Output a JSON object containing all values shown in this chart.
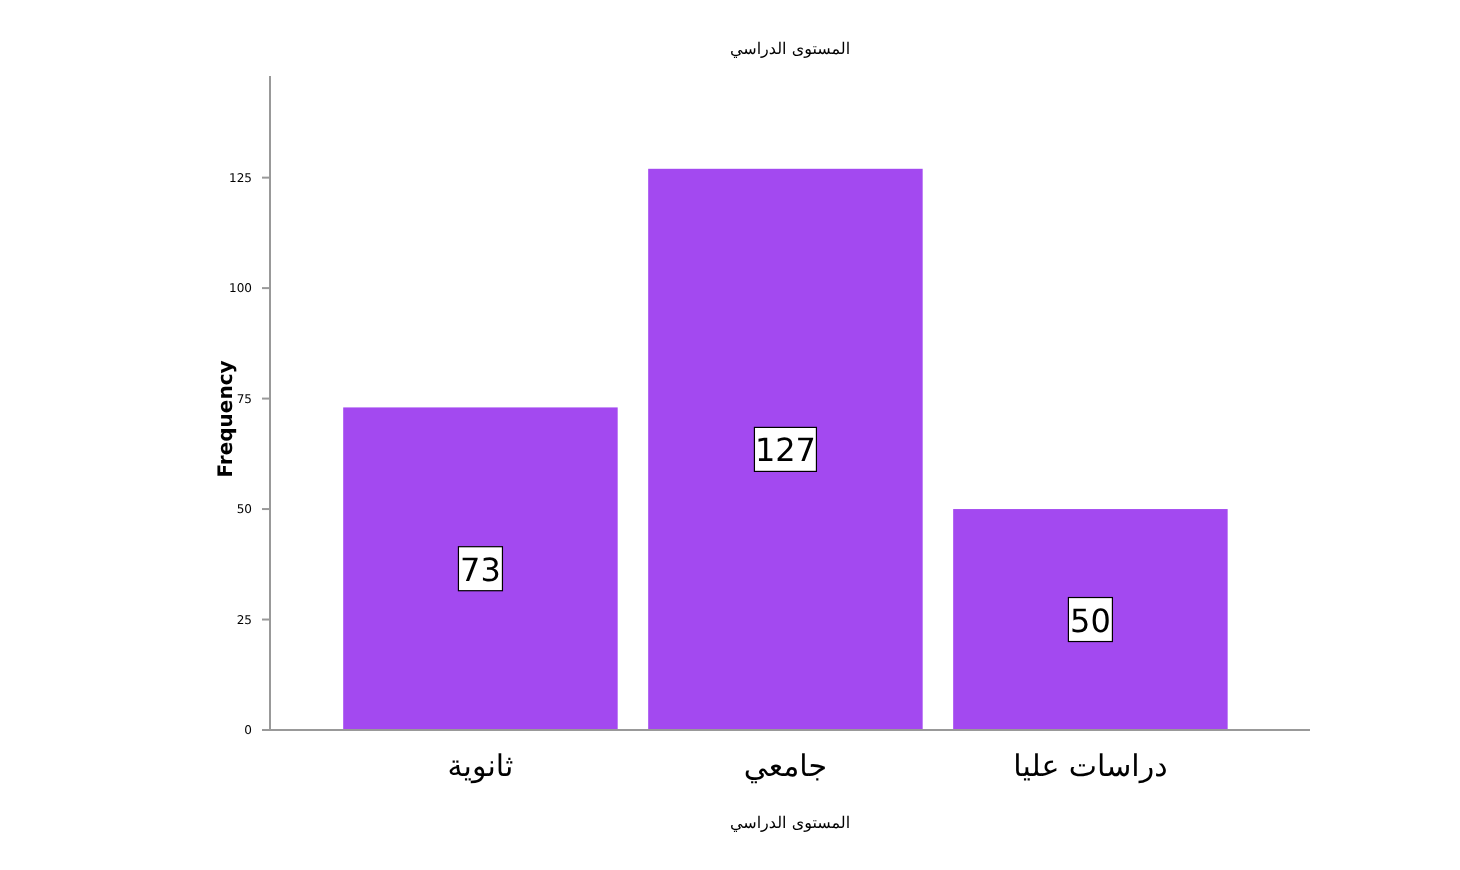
{
  "chart_data": {
    "type": "bar",
    "title": "المستوى الدراسي",
    "xlabel": "المستوى الدراسي",
    "ylabel": "Frequency",
    "categories": [
      "ثانوية",
      "جامعي",
      "دراسات عليا"
    ],
    "values": [
      73,
      127,
      50
    ],
    "color": "#a349f0",
    "ylim": [
      0,
      148
    ],
    "yticks": [
      0,
      25,
      50,
      75,
      100,
      125
    ],
    "data_labels": true,
    "grid": false
  }
}
